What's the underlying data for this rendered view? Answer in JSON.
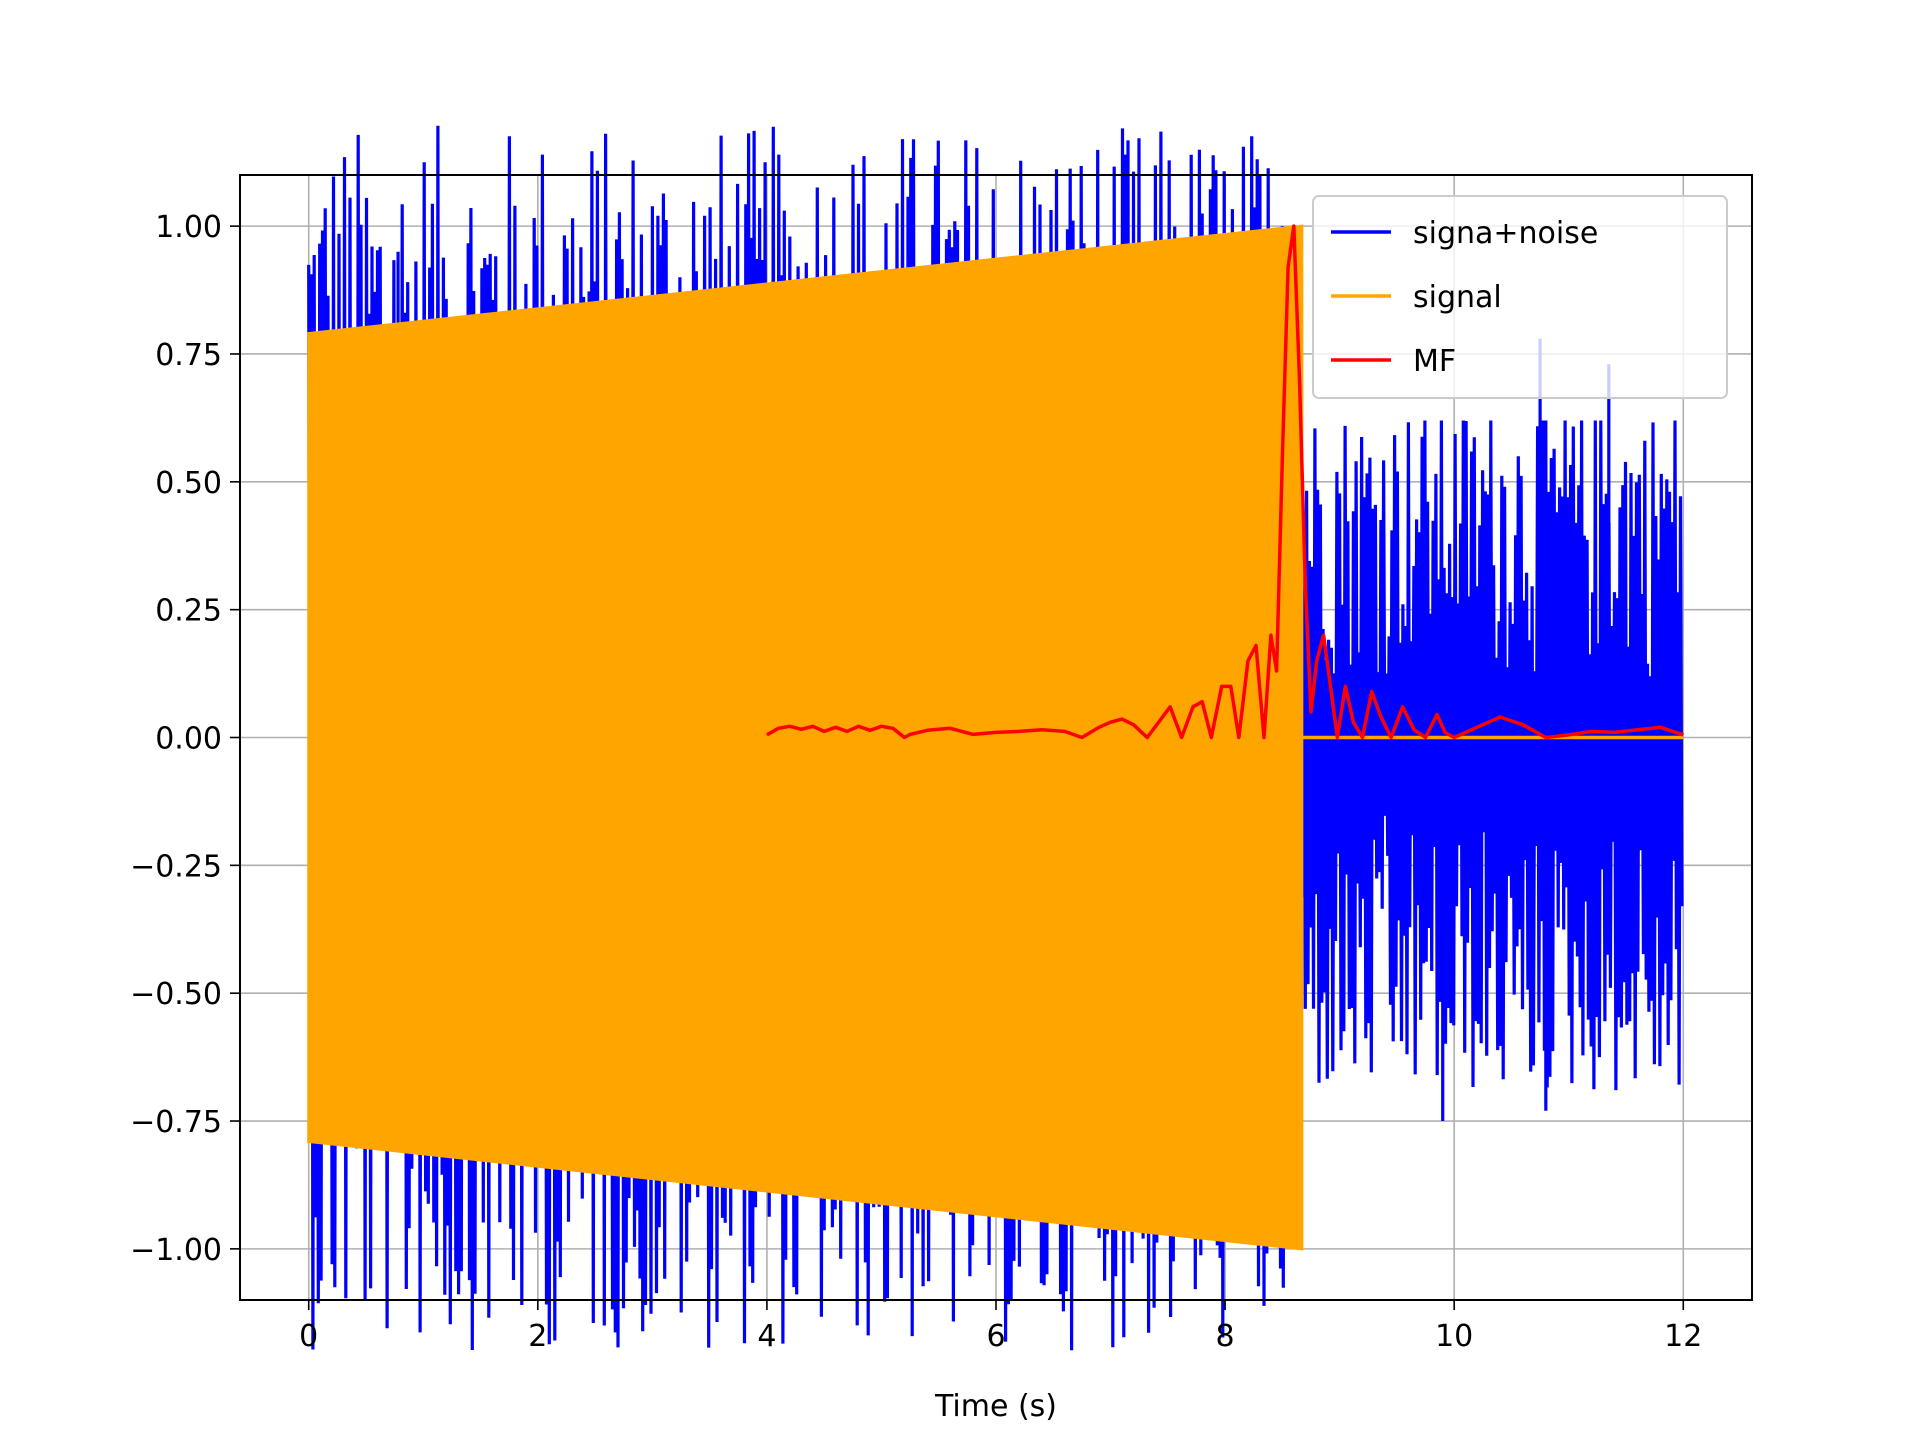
{
  "chart_data": {
    "type": "line",
    "title": "",
    "xlabel": "Time (s)",
    "ylabel": "",
    "xlim": [
      -0.6,
      12.6
    ],
    "ylim": [
      -1.1,
      1.1
    ],
    "grid": true,
    "legend_position": "top-right",
    "xticks": [
      0,
      2,
      4,
      6,
      8,
      10,
      12
    ],
    "xtick_labels": [
      "0",
      "2",
      "4",
      "6",
      "8",
      "10",
      "12"
    ],
    "yticks": [
      1.0,
      0.75,
      0.5,
      0.25,
      0.0,
      -0.25,
      -0.5,
      -0.75,
      -1.0
    ],
    "ytick_labels": [
      "1.00",
      "0.75",
      "0.50",
      "0.25",
      "0.00",
      "−0.25",
      "−0.50",
      "−0.75",
      "−1.00"
    ],
    "series": [
      {
        "name": "signa+noise",
        "color": "#0000ff",
        "style": "noise_trace",
        "x_range": [
          0,
          12
        ],
        "notable_points": [
          {
            "x": 0.78,
            "y": 0.95
          },
          {
            "x": 8.5,
            "y": 1.0
          },
          {
            "x": 9.9,
            "y": -0.75
          },
          {
            "x": 10.75,
            "y": 0.78
          },
          {
            "x": 11.35,
            "y": 0.73
          },
          {
            "x": 10.8,
            "y": -0.73
          }
        ],
        "noise_band_after_signal": {
          "x_start": 8.67,
          "x_end": 12.0,
          "typical_min": -0.55,
          "typical_max": 0.5
        }
      },
      {
        "name": "signal",
        "color": "#ffa500",
        "style": "chirp_envelope",
        "envelope": {
          "x_start": 0.0,
          "x_end": 8.67,
          "amp_start": 0.79,
          "amp_end": 1.0
        },
        "after": {
          "x_start": 8.67,
          "x_end": 12.0,
          "y": 0.0
        }
      },
      {
        "name": "MF",
        "color": "#ff0000",
        "style": "line",
        "x": [
          4.0,
          4.1,
          4.2,
          4.3,
          4.4,
          4.5,
          4.6,
          4.7,
          4.8,
          4.9,
          5.0,
          5.1,
          5.2,
          5.25,
          5.4,
          5.6,
          5.8,
          6.0,
          6.2,
          6.4,
          6.6,
          6.75,
          6.9,
          7.0,
          7.1,
          7.2,
          7.32,
          7.42,
          7.52,
          7.62,
          7.72,
          7.8,
          7.88,
          7.97,
          8.05,
          8.12,
          8.2,
          8.27,
          8.34,
          8.4,
          8.45,
          8.5,
          8.55,
          8.6,
          8.65,
          8.7,
          8.75,
          8.8,
          8.86,
          8.92,
          8.98,
          9.05,
          9.12,
          9.2,
          9.28,
          9.36,
          9.45,
          9.55,
          9.65,
          9.75,
          9.85,
          9.92,
          10.0,
          10.2,
          10.4,
          10.6,
          10.8,
          11.0,
          11.2,
          11.4,
          11.6,
          11.8,
          12.0
        ],
        "y": [
          0.005,
          0.018,
          0.022,
          0.016,
          0.022,
          0.012,
          0.02,
          0.012,
          0.022,
          0.014,
          0.022,
          0.018,
          0.0,
          0.006,
          0.014,
          0.018,
          0.006,
          0.01,
          0.012,
          0.015,
          0.012,
          0.0,
          0.02,
          0.03,
          0.036,
          0.025,
          0.0,
          0.03,
          0.06,
          0.0,
          0.06,
          0.07,
          0.0,
          0.1,
          0.1,
          0.0,
          0.15,
          0.18,
          0.0,
          0.2,
          0.13,
          0.55,
          0.92,
          1.0,
          0.7,
          0.3,
          0.05,
          0.15,
          0.2,
          0.1,
          0.0,
          0.1,
          0.03,
          0.0,
          0.09,
          0.04,
          0.0,
          0.06,
          0.015,
          0.0,
          0.045,
          0.01,
          0.0,
          0.02,
          0.04,
          0.025,
          0.0,
          0.005,
          0.012,
          0.01,
          0.015,
          0.02,
          0.005
        ]
      }
    ]
  }
}
